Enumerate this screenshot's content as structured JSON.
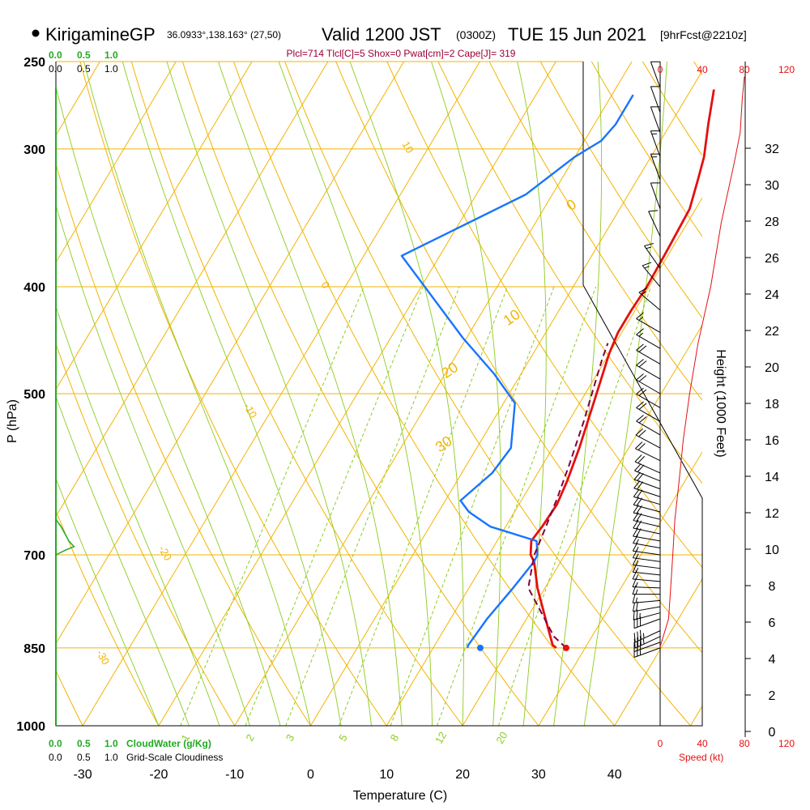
{
  "header": {
    "station": "KirigamineGP",
    "coords": "36.0933°,138.163° (27,50)",
    "valid_prefix": "Valid 1200 JST",
    "valid_utc": "(0300Z)",
    "valid_date": "TUE 15 Jun 2021",
    "forecast": "[9hrFcst@2210z]",
    "indices": "Plcl=714 Tlcl[C]=5 Shox=0 Pwat[cm]=2 Cape[J]= 319"
  },
  "colors": {
    "isotherm": "#f2b400",
    "dry_adiabat": "#f2b400",
    "moist_adiabat": "#8ccc1f",
    "mixing_ratio": "#8ccc1f",
    "temperature": "#e41010",
    "dewpoint": "#1874ff",
    "parcel": "#800040",
    "cloud": "#22aa22",
    "wind_speed": "#e41010",
    "indices_text": "#990033"
  },
  "top_scale": {
    "cloud_water": [
      "0.0",
      "0.5",
      "1.0"
    ],
    "cloudiness": [
      "0.0",
      "0.5",
      "1.0"
    ]
  },
  "bottom_scale": {
    "cloud_water_ticks": [
      "0.0",
      "0.5",
      "1.0"
    ],
    "cloud_water_label": "CloudWater (g/Kg)",
    "cloudiness_ticks": [
      "0.0",
      "0.5",
      "1.0"
    ],
    "cloudiness_label": "Grid-Scale Cloudiness"
  },
  "chart_data": {
    "type": "line",
    "title": "KirigamineGP",
    "xlabel": "Temperature (C)",
    "ylabel": "P (hPa)",
    "y2label": "Height (1000 Feet)",
    "x_ticks": [
      -30,
      -20,
      -10,
      0,
      10,
      20,
      30,
      40
    ],
    "pressure_ticks": [
      250,
      300,
      400,
      500,
      700,
      850,
      1000
    ],
    "height_ticks": [
      0,
      2,
      4,
      6,
      8,
      10,
      12,
      14,
      16,
      18,
      20,
      22,
      24,
      26,
      28,
      30,
      32
    ],
    "xlim": [
      -35,
      45
    ],
    "ylim": [
      1000,
      250
    ],
    "speed_ticks_top": [
      0,
      40,
      80,
      120
    ],
    "speed_ticks_bottom": [
      0,
      40,
      80,
      120
    ],
    "speed_label": "Speed (kt)",
    "mixing_ratio_labels": [
      1,
      2,
      3,
      5,
      8,
      12,
      20
    ],
    "dry_adiabat_labels": [
      {
        "text": "10",
        "x": -33,
        "p": 300
      },
      {
        "text": "0",
        "x": -33,
        "p": 400
      },
      {
        "text": "-10",
        "x": -33,
        "p": 520
      },
      {
        "text": "-20",
        "x": -33,
        "p": 700
      },
      {
        "text": "-30",
        "x": -33,
        "p": 870
      }
    ],
    "moist_adiabat_labels": [
      {
        "text": "0",
        "x": -6,
        "p": 340
      },
      {
        "text": "10",
        "x": -5,
        "p": 430
      },
      {
        "text": "20",
        "x": -9,
        "p": 480
      },
      {
        "text": "30",
        "x": -4,
        "p": 560
      }
    ],
    "series": [
      {
        "name": "Temperature",
        "points": [
          [
            26.2,
            850
          ],
          [
            25.5,
            845
          ],
          [
            22.5,
            800
          ],
          [
            19,
            750
          ],
          [
            16.5,
            710
          ],
          [
            15.5,
            700
          ],
          [
            14.5,
            680
          ],
          [
            14.8,
            660
          ],
          [
            15,
            630
          ],
          [
            14.5,
            600
          ],
          [
            13.5,
            560
          ],
          [
            11.5,
            500
          ],
          [
            10,
            460
          ],
          [
            9.5,
            440
          ],
          [
            9.5,
            420
          ],
          [
            9.7,
            400
          ],
          [
            9.5,
            370
          ],
          [
            9.2,
            340
          ],
          [
            8.0,
            320
          ],
          [
            7.0,
            305
          ],
          [
            5.0,
            285
          ],
          [
            3.0,
            265
          ]
        ]
      },
      {
        "name": "Dewpoint",
        "points": [
          [
            14.5,
            850
          ],
          [
            14.4,
            845
          ],
          [
            14.8,
            800
          ],
          [
            15.8,
            750
          ],
          [
            16.5,
            710
          ],
          [
            16.4,
            700
          ],
          [
            15.2,
            680
          ],
          [
            8.0,
            660
          ],
          [
            4.0,
            640
          ],
          [
            2.0,
            625
          ],
          [
            4.0,
            590
          ],
          [
            4.5,
            560
          ],
          [
            1.5,
            510
          ],
          [
            -3.5,
            480
          ],
          [
            -10.5,
            445
          ],
          [
            -25,
            375
          ],
          [
            -13.5,
            330
          ],
          [
            -10,
            305
          ],
          [
            -7.8,
            295
          ],
          [
            -7.2,
            285
          ],
          [
            -7.2,
            268
          ]
        ]
      },
      {
        "name": "Parcel",
        "points": [
          [
            27.5,
            850
          ],
          [
            25.0,
            830
          ],
          [
            21.5,
            790
          ],
          [
            17.8,
            750
          ],
          [
            16.5,
            714
          ],
          [
            16.0,
            700
          ],
          [
            15.3,
            660
          ],
          [
            14.5,
            620
          ],
          [
            13.5,
            580
          ],
          [
            12.0,
            530
          ],
          [
            10.5,
            490
          ],
          [
            9.5,
            465
          ],
          [
            9.0,
            450
          ]
        ]
      }
    ],
    "surface_points": [
      {
        "name": "surface temperature",
        "x": 27.5,
        "p": 850
      },
      {
        "name": "surface dewpoint",
        "x": 16.2,
        "p": 850
      }
    ],
    "winds": [
      {
        "p": 850,
        "dir": 250,
        "spd": 25
      },
      {
        "p": 840,
        "dir": 250,
        "spd": 30
      },
      {
        "p": 830,
        "dir": 245,
        "spd": 33
      },
      {
        "p": 820,
        "dir": 245,
        "spd": 34
      },
      {
        "p": 800,
        "dir": 250,
        "spd": 30
      },
      {
        "p": 790,
        "dir": 255,
        "spd": 26
      },
      {
        "p": 780,
        "dir": 260,
        "spd": 20
      },
      {
        "p": 770,
        "dir": 265,
        "spd": 16
      },
      {
        "p": 760,
        "dir": 270,
        "spd": 15
      },
      {
        "p": 750,
        "dir": 272,
        "spd": 15
      },
      {
        "p": 740,
        "dir": 275,
        "spd": 15
      },
      {
        "p": 730,
        "dir": 276,
        "spd": 16
      },
      {
        "p": 720,
        "dir": 277,
        "spd": 16
      },
      {
        "p": 710,
        "dir": 278,
        "spd": 17
      },
      {
        "p": 700,
        "dir": 278,
        "spd": 17
      },
      {
        "p": 690,
        "dir": 280,
        "spd": 17
      },
      {
        "p": 680,
        "dir": 280,
        "spd": 18
      },
      {
        "p": 670,
        "dir": 282,
        "spd": 18
      },
      {
        "p": 660,
        "dir": 283,
        "spd": 19
      },
      {
        "p": 650,
        "dir": 284,
        "spd": 19
      },
      {
        "p": 640,
        "dir": 285,
        "spd": 20
      },
      {
        "p": 630,
        "dir": 286,
        "spd": 20
      },
      {
        "p": 620,
        "dir": 288,
        "spd": 21
      },
      {
        "p": 610,
        "dir": 290,
        "spd": 21
      },
      {
        "p": 600,
        "dir": 292,
        "spd": 22
      },
      {
        "p": 590,
        "dir": 294,
        "spd": 22
      },
      {
        "p": 575,
        "dir": 296,
        "spd": 22
      },
      {
        "p": 560,
        "dir": 298,
        "spd": 22
      },
      {
        "p": 545,
        "dir": 300,
        "spd": 22
      },
      {
        "p": 530,
        "dir": 300,
        "spd": 22
      },
      {
        "p": 515,
        "dir": 300,
        "spd": 22
      },
      {
        "p": 500,
        "dir": 300,
        "spd": 22
      },
      {
        "p": 485,
        "dir": 300,
        "spd": 20
      },
      {
        "p": 470,
        "dir": 300,
        "spd": 18
      },
      {
        "p": 455,
        "dir": 300,
        "spd": 16
      },
      {
        "p": 440,
        "dir": 300,
        "spd": 14
      },
      {
        "p": 420,
        "dir": 310,
        "spd": 14
      },
      {
        "p": 400,
        "dir": 320,
        "spd": 14
      },
      {
        "p": 385,
        "dir": 325,
        "spd": 14
      },
      {
        "p": 360,
        "dir": 335,
        "spd": 12
      },
      {
        "p": 340,
        "dir": 340,
        "spd": 12
      },
      {
        "p": 320,
        "dir": 340,
        "spd": 14
      },
      {
        "p": 305,
        "dir": 340,
        "spd": 14
      },
      {
        "p": 290,
        "dir": 340,
        "spd": 12
      },
      {
        "p": 278,
        "dir": 340,
        "spd": 12
      },
      {
        "p": 264,
        "dir": 340,
        "spd": 10
      }
    ],
    "speed_profile": [
      [
        0,
        848
      ],
      [
        8,
        800
      ],
      [
        10,
        750
      ],
      [
        12,
        700
      ],
      [
        14,
        650
      ],
      [
        18,
        600
      ],
      [
        22,
        550
      ],
      [
        28,
        500
      ],
      [
        36,
        450
      ],
      [
        48,
        400
      ],
      [
        58,
        350
      ],
      [
        70,
        310
      ],
      [
        76,
        290
      ],
      [
        78,
        270
      ],
      [
        80,
        258
      ]
    ],
    "cloud_water_profile": [
      [
        0,
        650
      ],
      [
        0.08,
        660
      ],
      [
        0.2,
        680
      ],
      [
        0.28,
        688
      ],
      [
        0.15,
        693
      ],
      [
        0,
        700
      ]
    ]
  }
}
